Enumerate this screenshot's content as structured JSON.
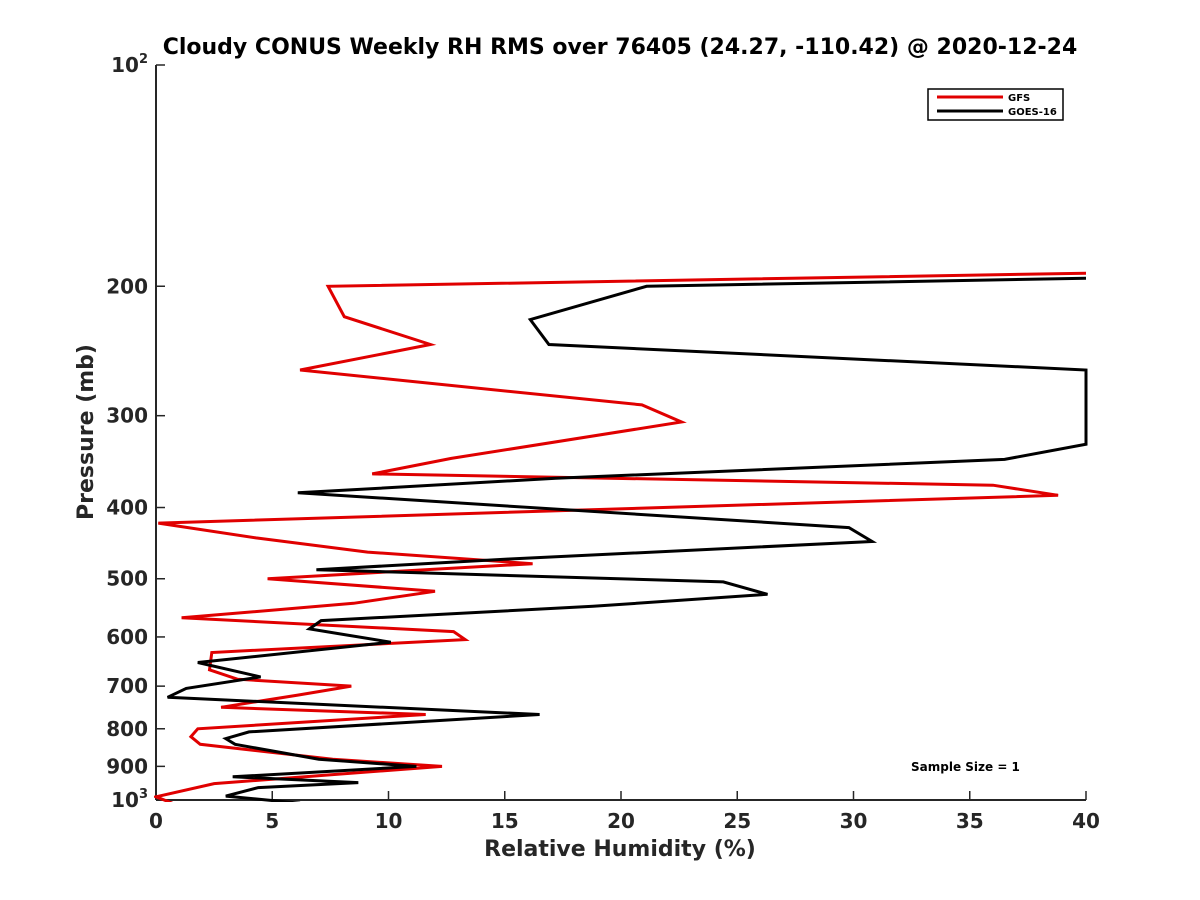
{
  "chart_data": {
    "type": "line",
    "title": "Cloudy CONUS Weekly RH RMS over 76405 (24.27, -110.42) @ 2020-12-24",
    "xlabel": "Relative Humidity (%)",
    "ylabel": "Pressure (mb)",
    "xlim": [
      0,
      40
    ],
    "ylim": [
      100,
      1000
    ],
    "yscale": "log",
    "yreversed": true,
    "xticks": [
      0,
      5,
      10,
      15,
      20,
      25,
      30,
      35,
      40
    ],
    "xtick_labels": [
      "0",
      "5",
      "10",
      "15",
      "20",
      "25",
      "30",
      "35",
      "40"
    ],
    "yticks": [
      {
        "value": 100,
        "label": "10",
        "sup": "2"
      },
      {
        "value": 200,
        "label": "200"
      },
      {
        "value": 300,
        "label": "300"
      },
      {
        "value": 400,
        "label": "400"
      },
      {
        "value": 500,
        "label": "500"
      },
      {
        "value": 600,
        "label": "600"
      },
      {
        "value": 700,
        "label": "700"
      },
      {
        "value": 800,
        "label": "800"
      },
      {
        "value": 900,
        "label": "900"
      },
      {
        "value": 1000,
        "label": "10",
        "sup": "3"
      }
    ],
    "legend_position": "top-right",
    "annotation": "Sample Size = 1",
    "series": [
      {
        "name": "GFS",
        "color": "#e00000",
        "points": [
          [
            40.0,
            192
          ],
          [
            7.4,
            200
          ],
          [
            8.1,
            220
          ],
          [
            11.8,
            240
          ],
          [
            6.2,
            260
          ],
          [
            20.9,
            290
          ],
          [
            22.6,
            306
          ],
          [
            12.7,
            343
          ],
          [
            9.3,
            360
          ],
          [
            36.0,
            373
          ],
          [
            38.8,
            385
          ],
          [
            0.1,
            420
          ],
          [
            4.3,
            440
          ],
          [
            9.1,
            460
          ],
          [
            16.2,
            477
          ],
          [
            4.8,
            500
          ],
          [
            12.0,
            520
          ],
          [
            8.5,
            540
          ],
          [
            1.1,
            565
          ],
          [
            12.8,
            590
          ],
          [
            13.3,
            605
          ],
          [
            2.4,
            630
          ],
          [
            2.3,
            665
          ],
          [
            3.5,
            685
          ],
          [
            8.4,
            700
          ],
          [
            6.1,
            720
          ],
          [
            2.8,
            748
          ],
          [
            11.6,
            765
          ],
          [
            1.8,
            800
          ],
          [
            1.5,
            820
          ],
          [
            1.9,
            840
          ],
          [
            7.6,
            880
          ],
          [
            12.3,
            900
          ],
          [
            2.5,
            950
          ],
          [
            0.0,
            990
          ],
          [
            0.7,
            1010
          ]
        ]
      },
      {
        "name": "GOES-16",
        "color": "#000000",
        "points": [
          [
            40.0,
            195
          ],
          [
            21.1,
            200
          ],
          [
            16.1,
            222
          ],
          [
            16.9,
            240
          ],
          [
            40.0,
            260
          ],
          [
            40.0,
            328
          ],
          [
            36.5,
            344
          ],
          [
            17.2,
            365
          ],
          [
            6.1,
            382
          ],
          [
            29.8,
            426
          ],
          [
            30.8,
            445
          ],
          [
            15.2,
            470
          ],
          [
            6.9,
            486
          ],
          [
            24.4,
            505
          ],
          [
            26.3,
            525
          ],
          [
            18.8,
            545
          ],
          [
            7.1,
            570
          ],
          [
            6.6,
            585
          ],
          [
            10.1,
            610
          ],
          [
            1.8,
            650
          ],
          [
            4.5,
            680
          ],
          [
            1.3,
            705
          ],
          [
            0.5,
            725
          ],
          [
            16.5,
            765
          ],
          [
            4.0,
            808
          ],
          [
            3.0,
            825
          ],
          [
            3.4,
            840
          ],
          [
            7.0,
            880
          ],
          [
            11.2,
            900
          ],
          [
            3.3,
            930
          ],
          [
            8.7,
            947
          ],
          [
            4.4,
            962
          ],
          [
            3.0,
            988
          ],
          [
            6.2,
            1010
          ]
        ]
      }
    ]
  }
}
